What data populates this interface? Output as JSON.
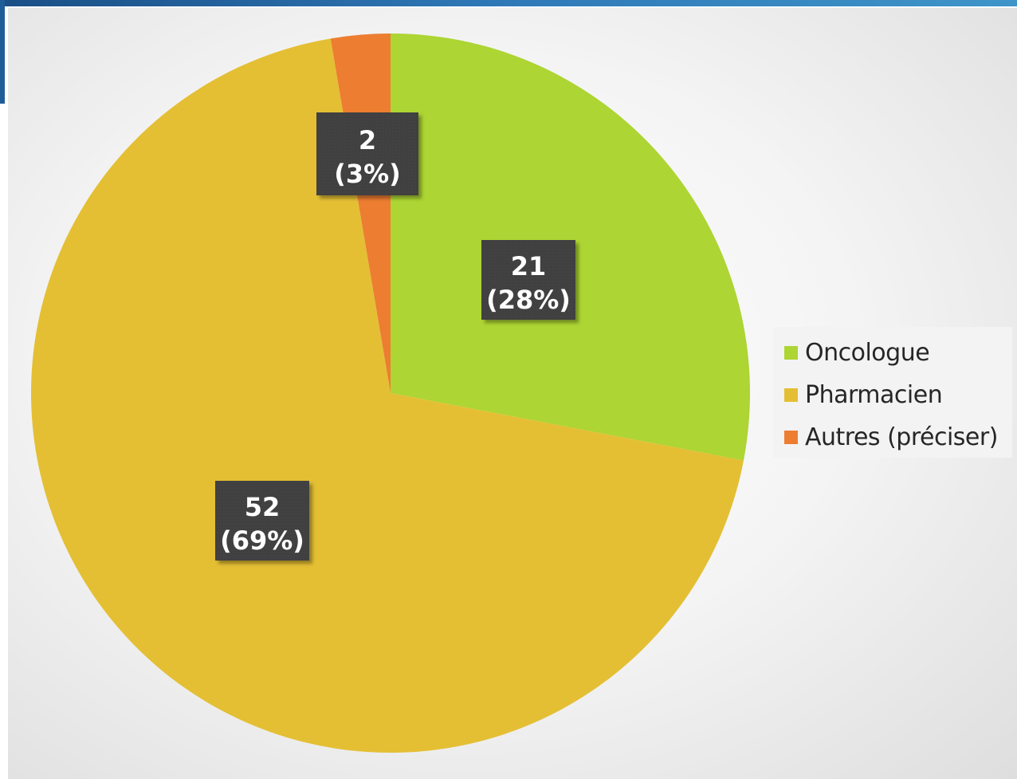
{
  "chart_data": {
    "type": "pie",
    "slices": [
      {
        "label": "Oncologue",
        "value": 21,
        "percent": "28%",
        "color": "#add533"
      },
      {
        "label": "Pharmacien",
        "value": 52,
        "percent": "69%",
        "color": "#e4bf34"
      },
      {
        "label": "Autres (préciser)",
        "value": 2,
        "percent": "3%",
        "color": "#ed7d31"
      }
    ],
    "data_labels": [
      {
        "line1": "21",
        "line2": "(28%)"
      },
      {
        "line1": "52",
        "line2": "(69%)"
      },
      {
        "line1": "2",
        "line2": "(3%)"
      }
    ],
    "start_angle": "12 o'clock",
    "direction": "clockwise",
    "legend_position": "right",
    "data_label_style": "white bold text on dark gray boxes"
  },
  "legend": {
    "items": [
      {
        "label": "Oncologue",
        "color": "#add533"
      },
      {
        "label": "Pharmacien",
        "color": "#e4bf34"
      },
      {
        "label": "Autres (préciser)",
        "color": "#ed7d31"
      }
    ]
  },
  "theme": {
    "label_box_color": "#404040",
    "label_text_color": "#ffffff",
    "accent_band_color": "#2f79b8"
  }
}
